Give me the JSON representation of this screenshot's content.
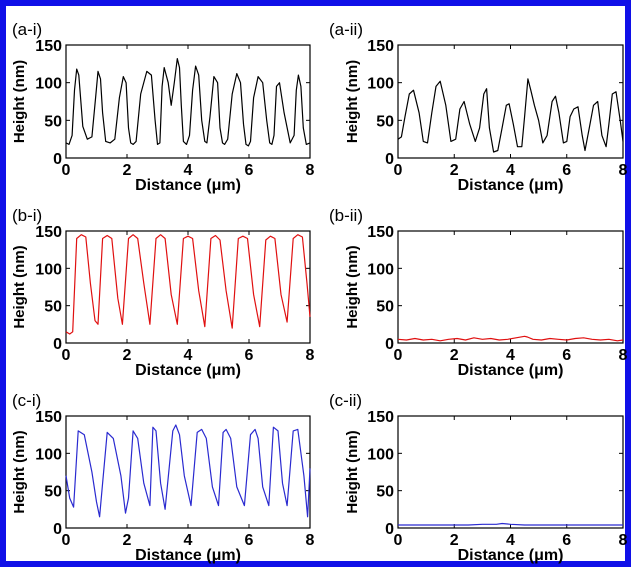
{
  "figure": {
    "border_color": "#1010e8",
    "background": "#ffffff"
  },
  "chart_data": [
    {
      "panel_label": "(a-i)",
      "type": "line",
      "xlabel": "Distance (μm)",
      "ylabel": "Height (nm)",
      "xlim": [
        0,
        8
      ],
      "ylim": [
        0,
        150
      ],
      "xticks": [
        0,
        2,
        4,
        6,
        8
      ],
      "yticks": [
        0,
        50,
        100,
        150
      ],
      "color": "#000000",
      "series": [
        {
          "x": [
            0,
            0.1,
            0.2,
            0.28,
            0.35,
            0.42,
            0.55,
            0.7,
            0.85,
            0.97,
            1.05,
            1.13,
            1.2,
            1.3,
            1.45,
            1.6,
            1.75,
            1.88,
            1.97,
            2.05,
            2.12,
            2.2,
            2.3,
            2.45,
            2.65,
            2.8,
            2.92,
            3.0,
            3.08,
            3.15,
            3.22,
            3.35,
            3.45,
            3.55,
            3.65,
            3.72,
            3.78,
            3.85,
            3.95,
            4.05,
            4.15,
            4.25,
            4.35,
            4.45,
            4.55,
            4.62,
            4.72,
            4.85,
            4.97,
            5.05,
            5.13,
            5.2,
            5.3,
            5.45,
            5.6,
            5.72,
            5.82,
            5.9,
            5.98,
            6.05,
            6.15,
            6.3,
            6.45,
            6.58,
            6.68,
            6.75,
            6.82,
            6.9,
            7.0,
            7.15,
            7.35,
            7.48,
            7.55,
            7.62,
            7.7,
            7.78,
            7.88,
            8.0
          ],
          "y": [
            20,
            18,
            30,
            90,
            118,
            110,
            42,
            25,
            28,
            80,
            115,
            105,
            60,
            22,
            20,
            25,
            80,
            108,
            100,
            40,
            20,
            18,
            22,
            85,
            115,
            110,
            50,
            18,
            20,
            95,
            120,
            100,
            70,
            100,
            132,
            120,
            70,
            22,
            18,
            30,
            90,
            122,
            110,
            50,
            22,
            20,
            55,
            108,
            100,
            40,
            20,
            18,
            25,
            85,
            112,
            100,
            45,
            18,
            16,
            22,
            80,
            108,
            100,
            50,
            20,
            18,
            30,
            95,
            100,
            60,
            20,
            30,
            90,
            110,
            95,
            40,
            18,
            20
          ]
        }
      ]
    },
    {
      "panel_label": "(a-ii)",
      "type": "line",
      "xlabel": "Distance (μm)",
      "ylabel": "Height (nm)",
      "xlim": [
        0,
        8
      ],
      "ylim": [
        0,
        150
      ],
      "xticks": [
        0,
        2,
        4,
        6,
        8
      ],
      "yticks": [
        0,
        50,
        100,
        150
      ],
      "color": "#000000",
      "series": [
        {
          "x": [
            0,
            0.12,
            0.25,
            0.4,
            0.55,
            0.75,
            0.9,
            1.05,
            1.2,
            1.35,
            1.5,
            1.7,
            1.88,
            2.05,
            2.2,
            2.35,
            2.55,
            2.75,
            2.9,
            3.05,
            3.15,
            3.25,
            3.4,
            3.55,
            3.7,
            3.85,
            3.95,
            4.1,
            4.25,
            4.4,
            4.5,
            4.62,
            4.72,
            4.85,
            5.0,
            5.15,
            5.3,
            5.48,
            5.6,
            5.72,
            5.88,
            6.0,
            6.12,
            6.25,
            6.4,
            6.55,
            6.65,
            6.8,
            6.95,
            7.1,
            7.25,
            7.4,
            7.5,
            7.62,
            7.75,
            7.9,
            8.0
          ],
          "y": [
            25,
            28,
            55,
            85,
            90,
            60,
            22,
            20,
            60,
            95,
            102,
            70,
            22,
            25,
            65,
            75,
            45,
            22,
            40,
            85,
            92,
            40,
            8,
            10,
            40,
            70,
            72,
            45,
            15,
            15,
            55,
            105,
            90,
            70,
            50,
            20,
            30,
            75,
            82,
            60,
            20,
            22,
            55,
            65,
            68,
            30,
            10,
            40,
            70,
            75,
            30,
            15,
            45,
            85,
            88,
            50,
            22
          ]
        }
      ]
    },
    {
      "panel_label": "(b-i)",
      "type": "line",
      "xlabel": "Distance (μm)",
      "ylabel": "Height (nm)",
      "xlim": [
        0,
        8
      ],
      "ylim": [
        0,
        150
      ],
      "xticks": [
        0,
        2,
        4,
        6,
        8
      ],
      "yticks": [
        0,
        50,
        100,
        150
      ],
      "color": "#e01010",
      "series": [
        {
          "x": [
            0,
            0.12,
            0.22,
            0.35,
            0.5,
            0.65,
            0.8,
            0.95,
            1.05,
            1.2,
            1.35,
            1.5,
            1.7,
            1.85,
            2.05,
            2.2,
            2.35,
            2.55,
            2.75,
            2.95,
            3.1,
            3.25,
            3.45,
            3.65,
            3.85,
            4.0,
            4.15,
            4.35,
            4.55,
            4.75,
            4.9,
            5.05,
            5.25,
            5.45,
            5.65,
            5.8,
            5.95,
            6.15,
            6.35,
            6.55,
            6.7,
            6.85,
            7.05,
            7.25,
            7.45,
            7.6,
            7.75,
            7.9,
            8.0
          ],
          "y": [
            15,
            12,
            15,
            140,
            145,
            142,
            80,
            30,
            25,
            140,
            144,
            140,
            60,
            25,
            140,
            145,
            140,
            80,
            25,
            140,
            145,
            140,
            65,
            25,
            140,
            143,
            140,
            70,
            22,
            140,
            144,
            138,
            70,
            20,
            140,
            143,
            140,
            65,
            22,
            138,
            143,
            140,
            65,
            28,
            140,
            145,
            142,
            80,
            35
          ]
        }
      ]
    },
    {
      "panel_label": "(b-ii)",
      "type": "line",
      "xlabel": "Distance (μm)",
      "ylabel": "Height (nm)",
      "xlim": [
        0,
        8
      ],
      "ylim": [
        0,
        150
      ],
      "xticks": [
        0,
        2,
        4,
        6,
        8
      ],
      "yticks": [
        0,
        50,
        100,
        150
      ],
      "color": "#e01010",
      "series": [
        {
          "x": [
            0,
            0.3,
            0.6,
            0.9,
            1.2,
            1.5,
            1.8,
            2.1,
            2.4,
            2.7,
            3.0,
            3.3,
            3.6,
            3.9,
            4.2,
            4.5,
            4.6,
            4.8,
            5.1,
            5.4,
            5.7,
            6.0,
            6.3,
            6.6,
            6.9,
            7.2,
            7.5,
            7.8,
            8.0
          ],
          "y": [
            5,
            4,
            6,
            4,
            5,
            3,
            5,
            6,
            4,
            7,
            5,
            6,
            4,
            5,
            7,
            9,
            8,
            5,
            4,
            6,
            5,
            4,
            6,
            7,
            5,
            4,
            5,
            3,
            4
          ]
        }
      ]
    },
    {
      "panel_label": "(c-i)",
      "type": "line",
      "xlabel": "Distance (μm)",
      "ylabel": "Height (nm)",
      "xlim": [
        0,
        8
      ],
      "ylim": [
        0,
        150
      ],
      "xticks": [
        0,
        2,
        4,
        6,
        8
      ],
      "yticks": [
        0,
        50,
        100,
        150
      ],
      "color": "#2a2ad0",
      "series": [
        {
          "x": [
            0,
            0.12,
            0.25,
            0.4,
            0.6,
            0.85,
            1.0,
            1.1,
            1.2,
            1.35,
            1.55,
            1.8,
            1.95,
            2.05,
            2.2,
            2.35,
            2.55,
            2.75,
            2.85,
            2.95,
            3.1,
            3.25,
            3.5,
            3.6,
            3.72,
            3.88,
            4.1,
            4.3,
            4.45,
            4.6,
            4.8,
            5.0,
            5.15,
            5.25,
            5.4,
            5.6,
            5.85,
            6.05,
            6.2,
            6.3,
            6.45,
            6.65,
            6.8,
            6.95,
            7.1,
            7.25,
            7.45,
            7.6,
            7.8,
            7.92,
            8.0
          ],
          "y": [
            70,
            40,
            28,
            130,
            125,
            75,
            35,
            15,
            60,
            128,
            120,
            70,
            20,
            40,
            130,
            120,
            60,
            30,
            135,
            130,
            60,
            25,
            130,
            138,
            125,
            70,
            30,
            128,
            132,
            120,
            55,
            30,
            128,
            132,
            120,
            55,
            30,
            125,
            132,
            120,
            55,
            30,
            135,
            130,
            60,
            30,
            130,
            132,
            70,
            15,
            80
          ]
        }
      ]
    },
    {
      "panel_label": "(c-ii)",
      "type": "line",
      "xlabel": "Distance (μm)",
      "ylabel": "Height (nm)",
      "xlim": [
        0,
        8
      ],
      "ylim": [
        0,
        150
      ],
      "xticks": [
        0,
        2,
        4,
        6,
        8
      ],
      "yticks": [
        0,
        50,
        100,
        150
      ],
      "color": "#2a2ad0",
      "series": [
        {
          "x": [
            0,
            0.5,
            1.0,
            1.5,
            2.0,
            2.5,
            3.0,
            3.5,
            3.7,
            4.0,
            4.5,
            5.0,
            5.5,
            6.0,
            6.5,
            7.0,
            7.5,
            8.0
          ],
          "y": [
            4,
            4,
            4,
            4,
            4,
            4,
            5,
            5,
            6,
            5,
            4,
            4,
            4,
            4,
            4,
            4,
            4,
            4
          ]
        }
      ]
    }
  ]
}
